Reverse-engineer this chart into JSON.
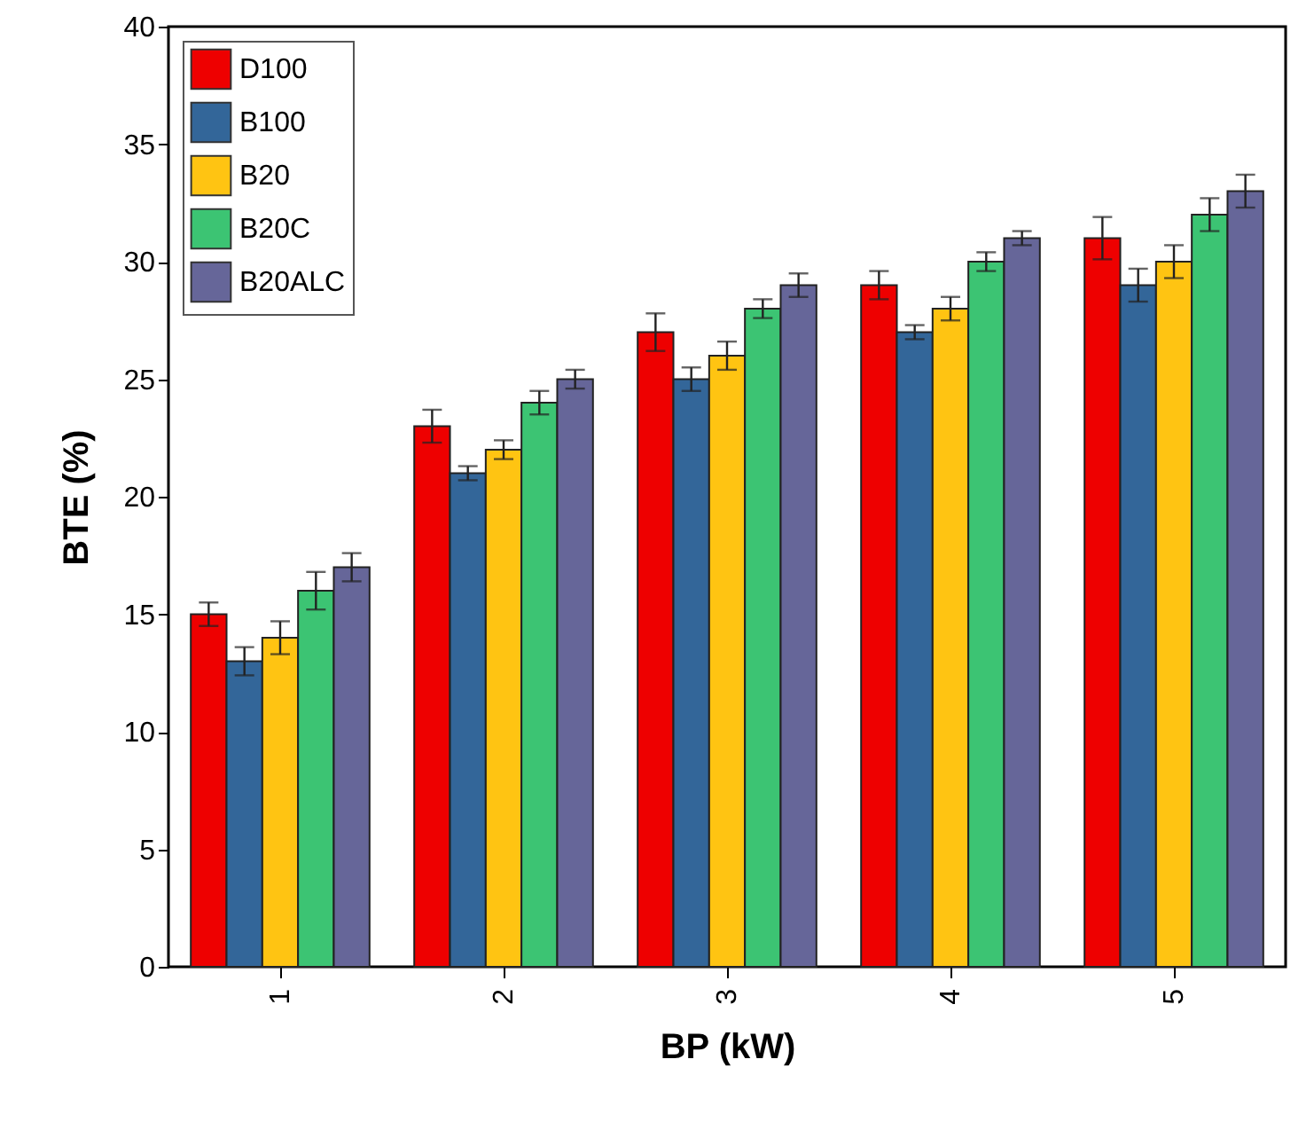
{
  "chart_data": {
    "type": "bar",
    "xlabel": "BP (kW)",
    "ylabel": "BTE (%)",
    "categories": [
      "1",
      "2",
      "3",
      "4",
      "5"
    ],
    "series": [
      {
        "name": "D100",
        "color": "#ee0000",
        "values": [
          15,
          23,
          27,
          29,
          31
        ],
        "errors": [
          0.5,
          0.7,
          0.8,
          0.6,
          0.9
        ]
      },
      {
        "name": "B100",
        "color": "#336699",
        "values": [
          13,
          21,
          25,
          27,
          29
        ],
        "errors": [
          0.6,
          0.3,
          0.5,
          0.3,
          0.7
        ]
      },
      {
        "name": "B20",
        "color": "#ffc412",
        "values": [
          14,
          22,
          26,
          28,
          30
        ],
        "errors": [
          0.7,
          0.4,
          0.6,
          0.5,
          0.7
        ]
      },
      {
        "name": "B20C",
        "color": "#3cc473",
        "values": [
          16,
          24,
          28,
          30,
          32
        ],
        "errors": [
          0.8,
          0.5,
          0.4,
          0.4,
          0.7
        ]
      },
      {
        "name": "B20ALC",
        "color": "#666699",
        "values": [
          17,
          25,
          29,
          31,
          33
        ],
        "errors": [
          0.6,
          0.4,
          0.5,
          0.3,
          0.7
        ]
      }
    ],
    "ylim": [
      0,
      40
    ],
    "yticks": [
      0,
      5,
      10,
      15,
      20,
      25,
      30,
      35,
      40
    ],
    "legend": "top left"
  }
}
